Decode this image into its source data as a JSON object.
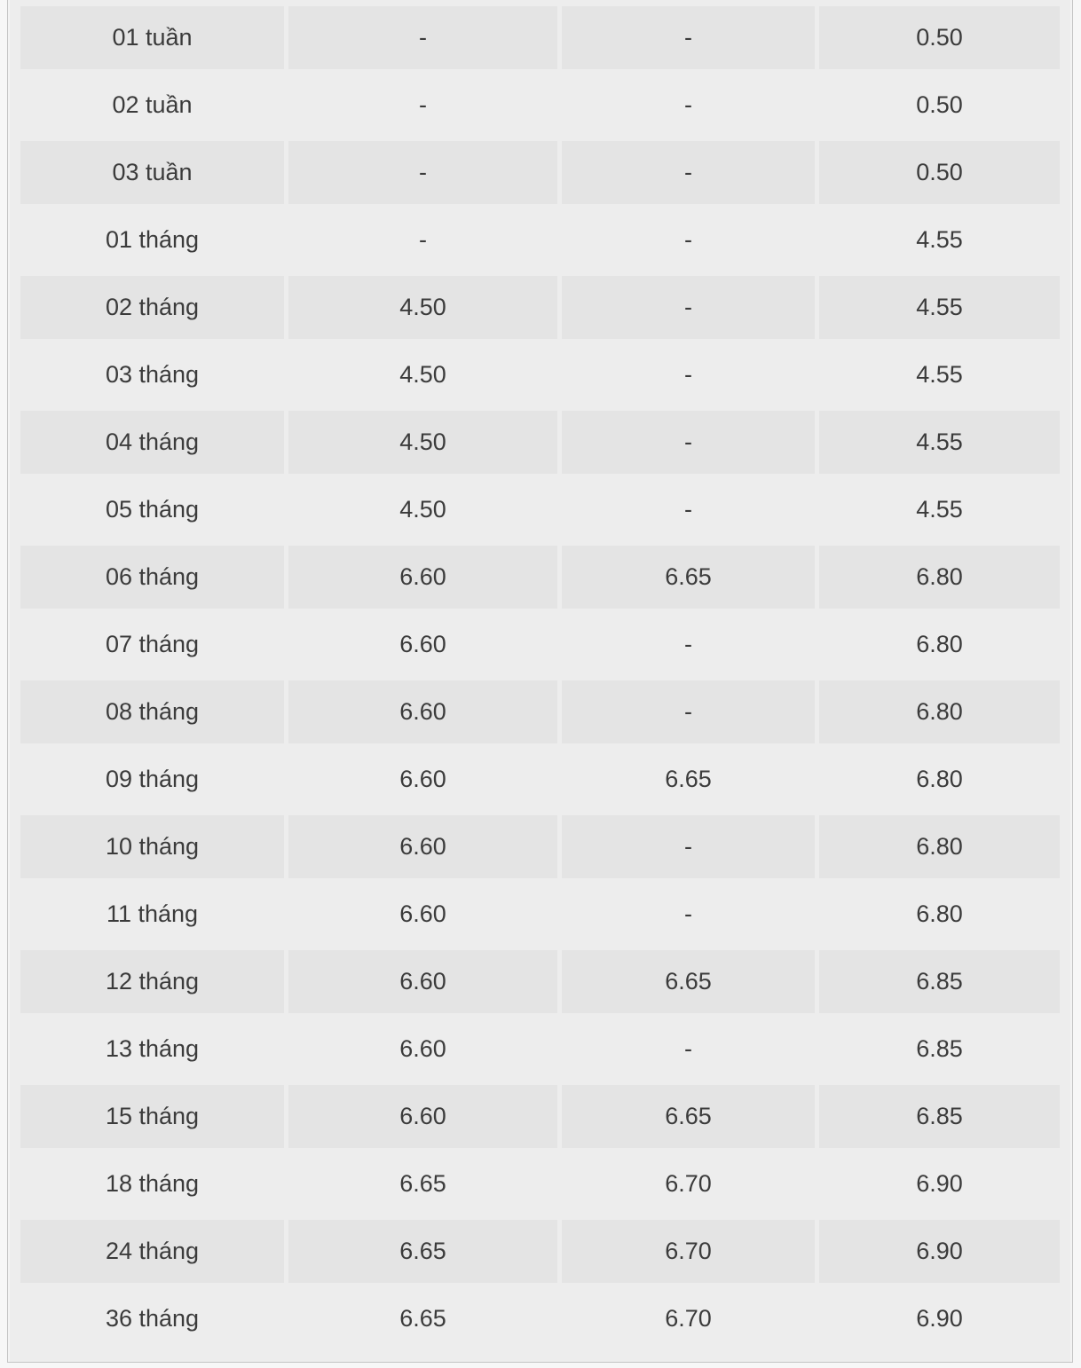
{
  "page": {
    "outer_background": "#f7f7f7",
    "panel_background": "#ededed",
    "panel_border_color": "#c4c4c4",
    "row_stripe_color": "#e4e4e4",
    "text_color": "#3b3b3b",
    "empty_value_symbol": "-"
  },
  "chart_data": {
    "type": "table",
    "header_visible": false,
    "columns_visible": 4,
    "legend_position": "none",
    "grid": "striped-rows",
    "rows": [
      {
        "term": "01 tuần",
        "values": [
          "-",
          "-",
          "0.50"
        ]
      },
      {
        "term": "02 tuần",
        "values": [
          "-",
          "-",
          "0.50"
        ]
      },
      {
        "term": "03 tuần",
        "values": [
          "-",
          "-",
          "0.50"
        ]
      },
      {
        "term": "01 tháng",
        "values": [
          "-",
          "-",
          "4.55"
        ]
      },
      {
        "term": "02 tháng",
        "values": [
          "4.50",
          "-",
          "4.55"
        ]
      },
      {
        "term": "03 tháng",
        "values": [
          "4.50",
          "-",
          "4.55"
        ]
      },
      {
        "term": "04 tháng",
        "values": [
          "4.50",
          "-",
          "4.55"
        ]
      },
      {
        "term": "05 tháng",
        "values": [
          "4.50",
          "-",
          "4.55"
        ]
      },
      {
        "term": "06 tháng",
        "values": [
          "6.60",
          "6.65",
          "6.80"
        ]
      },
      {
        "term": "07 tháng",
        "values": [
          "6.60",
          "-",
          "6.80"
        ]
      },
      {
        "term": "08 tháng",
        "values": [
          "6.60",
          "-",
          "6.80"
        ]
      },
      {
        "term": "09 tháng",
        "values": [
          "6.60",
          "6.65",
          "6.80"
        ]
      },
      {
        "term": "10 tháng",
        "values": [
          "6.60",
          "-",
          "6.80"
        ]
      },
      {
        "term": "11 tháng",
        "values": [
          "6.60",
          "-",
          "6.80"
        ]
      },
      {
        "term": "12 tháng",
        "values": [
          "6.60",
          "6.65",
          "6.85"
        ]
      },
      {
        "term": "13 tháng",
        "values": [
          "6.60",
          "-",
          "6.85"
        ]
      },
      {
        "term": "15 tháng",
        "values": [
          "6.60",
          "6.65",
          "6.85"
        ]
      },
      {
        "term": "18 tháng",
        "values": [
          "6.65",
          "6.70",
          "6.90"
        ]
      },
      {
        "term": "24 tháng",
        "values": [
          "6.65",
          "6.70",
          "6.90"
        ]
      },
      {
        "term": "36 tháng",
        "values": [
          "6.65",
          "6.70",
          "6.90"
        ]
      }
    ]
  }
}
